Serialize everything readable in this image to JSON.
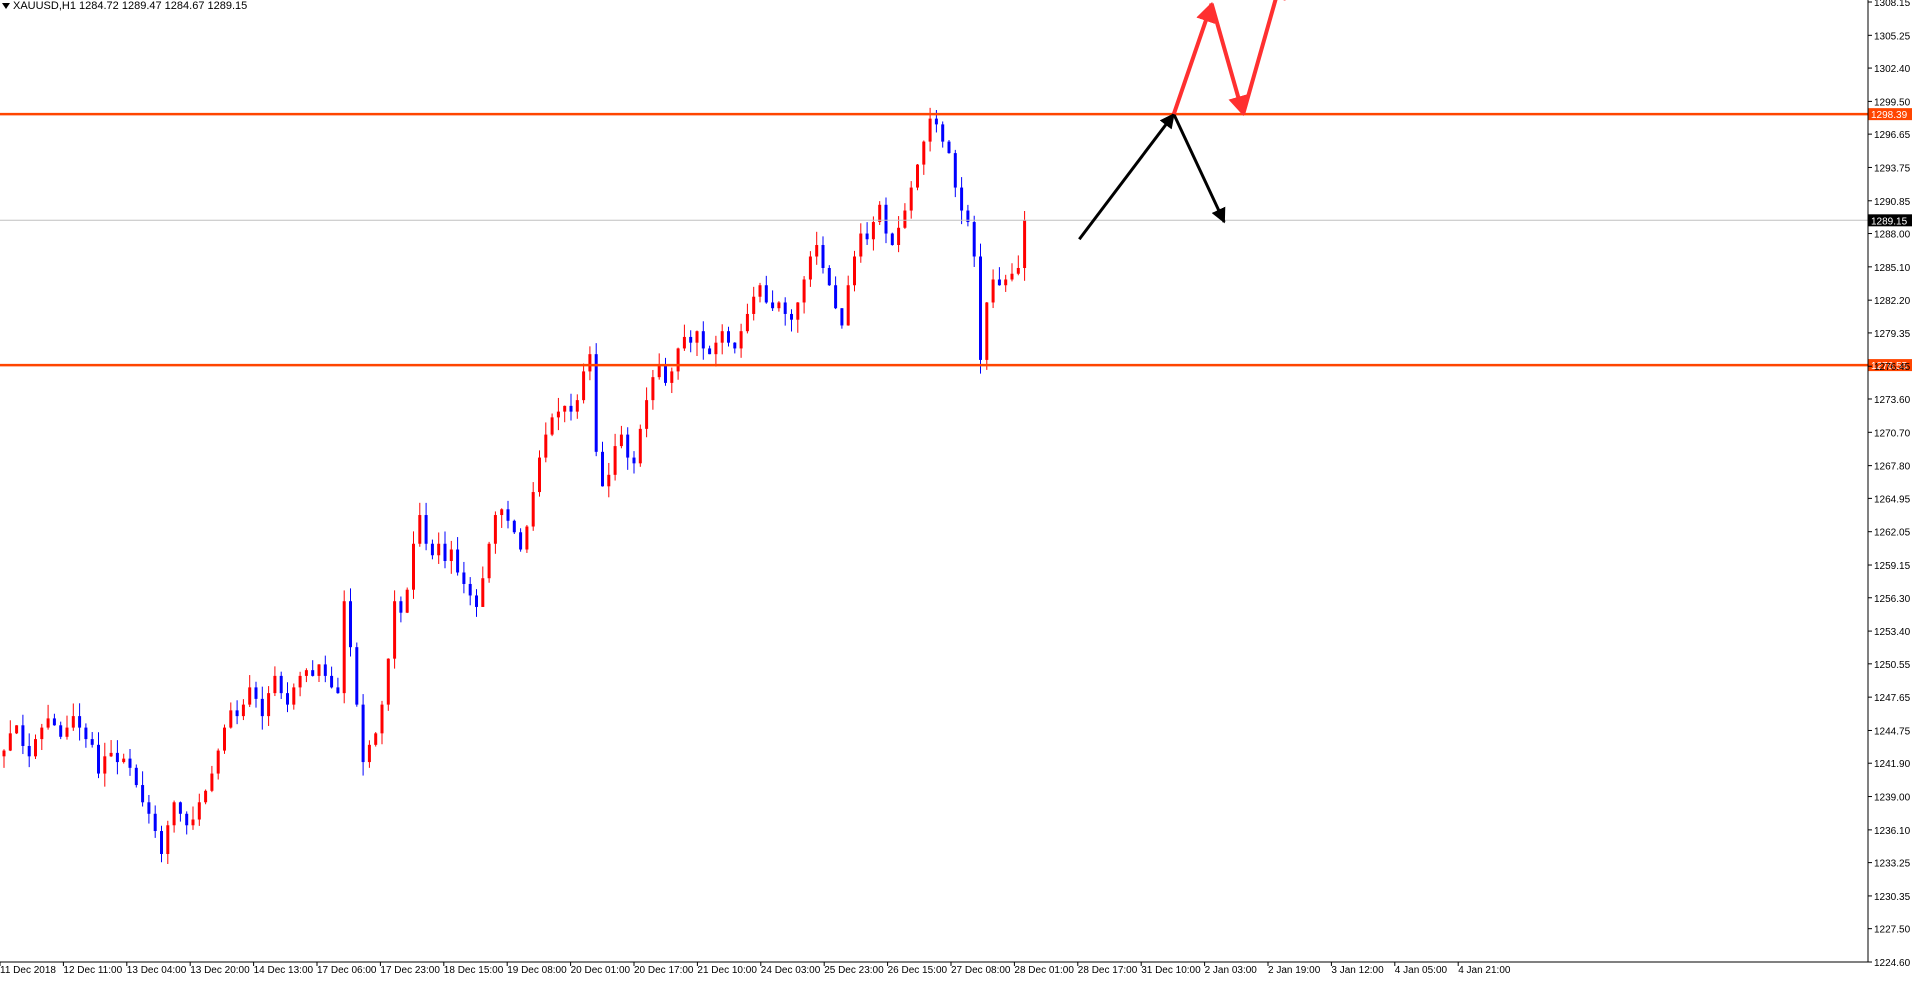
{
  "chart_header": {
    "symbol": "XAUUSD,H1",
    "ohlc": "1284.72 1289.47 1284.67 1289.15"
  },
  "colors": {
    "bull": "#ff0000",
    "bear": "#0000ff",
    "level_line": "#ff4500",
    "arrow_red": "#ff3030",
    "arrow_black": "#000000",
    "current_price_line": "#c0c0c0"
  },
  "chart_data": {
    "type": "candlestick",
    "timeframe": "H1",
    "ylim": [
      1224.6,
      1308.15
    ],
    "grid": false,
    "y_ticks": [
      "1308.15",
      "1305.25",
      "1302.40",
      "1299.50",
      "1296.65",
      "1293.75",
      "1290.85",
      "1288.00",
      "1285.10",
      "1282.20",
      "1279.35",
      "1276.45",
      "1273.60",
      "1270.70",
      "1267.80",
      "1264.95",
      "1262.05",
      "1259.15",
      "1256.30",
      "1253.40",
      "1250.55",
      "1247.65",
      "1244.75",
      "1241.90",
      "1239.00",
      "1236.10",
      "1233.25",
      "1230.35",
      "1227.50",
      "1224.60"
    ],
    "x_ticks": [
      "11 Dec 2018",
      "12 Dec 11:00",
      "13 Dec 04:00",
      "13 Dec 20:00",
      "14 Dec 13:00",
      "17 Dec 06:00",
      "17 Dec 23:00",
      "18 Dec 15:00",
      "19 Dec 08:00",
      "20 Dec 01:00",
      "20 Dec 17:00",
      "21 Dec 10:00",
      "24 Dec 03:00",
      "25 Dec 23:00",
      "26 Dec 15:00",
      "27 Dec 08:00",
      "28 Dec 01:00",
      "28 Dec 17:00",
      "31 Dec 10:00",
      "2 Jan 03:00",
      "2 Jan 19:00",
      "3 Jan 12:00",
      "4 Jan 05:00",
      "4 Jan 21:00"
    ],
    "price_labels": [
      {
        "value": 1298.39,
        "label": "1298.39",
        "type": "resistance"
      },
      {
        "value": 1289.15,
        "label": "1289.15",
        "type": "current"
      },
      {
        "value": 1276.55,
        "label": "1276.55",
        "type": "support"
      }
    ],
    "close_path": [
      1243.0,
      1244.5,
      1245.2,
      1243.4,
      1242.5,
      1244.0,
      1245.0,
      1245.8,
      1245.2,
      1244.2,
      1245.0,
      1246.0,
      1245.0,
      1244.0,
      1243.5,
      1241.0,
      1242.5,
      1242.8,
      1242.0,
      1242.3,
      1241.5,
      1240.0,
      1238.5,
      1237.5,
      1236.0,
      1234.0,
      1236.5,
      1238.5,
      1237.5,
      1236.5,
      1237.0,
      1238.5,
      1239.5,
      1241.0,
      1243.0,
      1245.0,
      1246.5,
      1246.0,
      1247.0,
      1248.5,
      1247.5,
      1246.0,
      1248.0,
      1249.5,
      1248.0,
      1247.0,
      1248.5,
      1249.5,
      1250.0,
      1249.5,
      1250.5,
      1249.5,
      1248.5,
      1248.0,
      1256.0,
      1252.0,
      1247.0,
      1242.0,
      1243.5,
      1244.5,
      1247.0,
      1251.0,
      1256.0,
      1255.0,
      1257.0,
      1261.0,
      1263.5,
      1261.0,
      1260.0,
      1261.0,
      1259.5,
      1260.5,
      1258.5,
      1257.5,
      1256.5,
      1255.5,
      1258.0,
      1261.0,
      1263.5,
      1264.0,
      1263.0,
      1262.0,
      1260.5,
      1262.5,
      1265.5,
      1268.5,
      1270.5,
      1272.0,
      1272.5,
      1273.0,
      1272.5,
      1273.5,
      1276.0,
      1277.5,
      1269.0,
      1266.0,
      1267.0,
      1269.5,
      1270.5,
      1268.5,
      1268.0,
      1271.0,
      1273.5,
      1275.5,
      1276.5,
      1275.0,
      1276.0,
      1278.0,
      1279.0,
      1278.5,
      1279.5,
      1278.0,
      1277.5,
      1278.5,
      1279.5,
      1278.5,
      1278.0,
      1279.5,
      1281.0,
      1282.5,
      1283.5,
      1282.0,
      1281.5,
      1282.0,
      1281.0,
      1280.5,
      1282.0,
      1284.0,
      1286.0,
      1287.0,
      1285.0,
      1283.5,
      1281.5,
      1280.0,
      1283.5,
      1286.0,
      1288.0,
      1287.5,
      1289.0,
      1290.5,
      1288.0,
      1287.0,
      1288.5,
      1290.0,
      1292.0,
      1294.0,
      1296.0,
      1298.0,
      1297.5,
      1296.0,
      1295.0,
      1292.0,
      1290.0,
      1289.0,
      1286.0,
      1277.0,
      1282.0,
      1284.0,
      1283.5,
      1284.0,
      1284.5,
      1285.0,
      1289.15
    ]
  },
  "annotations": {
    "black_arrows": [
      {
        "from": {
          "bar": 171,
          "price": 1287.5
        },
        "to": {
          "bar": 186,
          "price": 1298.39
        }
      },
      {
        "from": {
          "bar": 186,
          "price": 1298.39
        },
        "to": {
          "bar": 194,
          "price": 1289.0
        }
      }
    ],
    "red_arrows": [
      {
        "from": {
          "bar": 186,
          "price": 1298.39
        },
        "to": {
          "bar": 192,
          "price": 1308.0
        }
      },
      {
        "from": {
          "bar": 192,
          "price": 1308.0
        },
        "to": {
          "bar": 197,
          "price": 1298.39
        }
      },
      {
        "from": {
          "bar": 197,
          "price": 1298.39
        },
        "to": {
          "bar": 203,
          "price": 1310.0
        }
      }
    ]
  }
}
